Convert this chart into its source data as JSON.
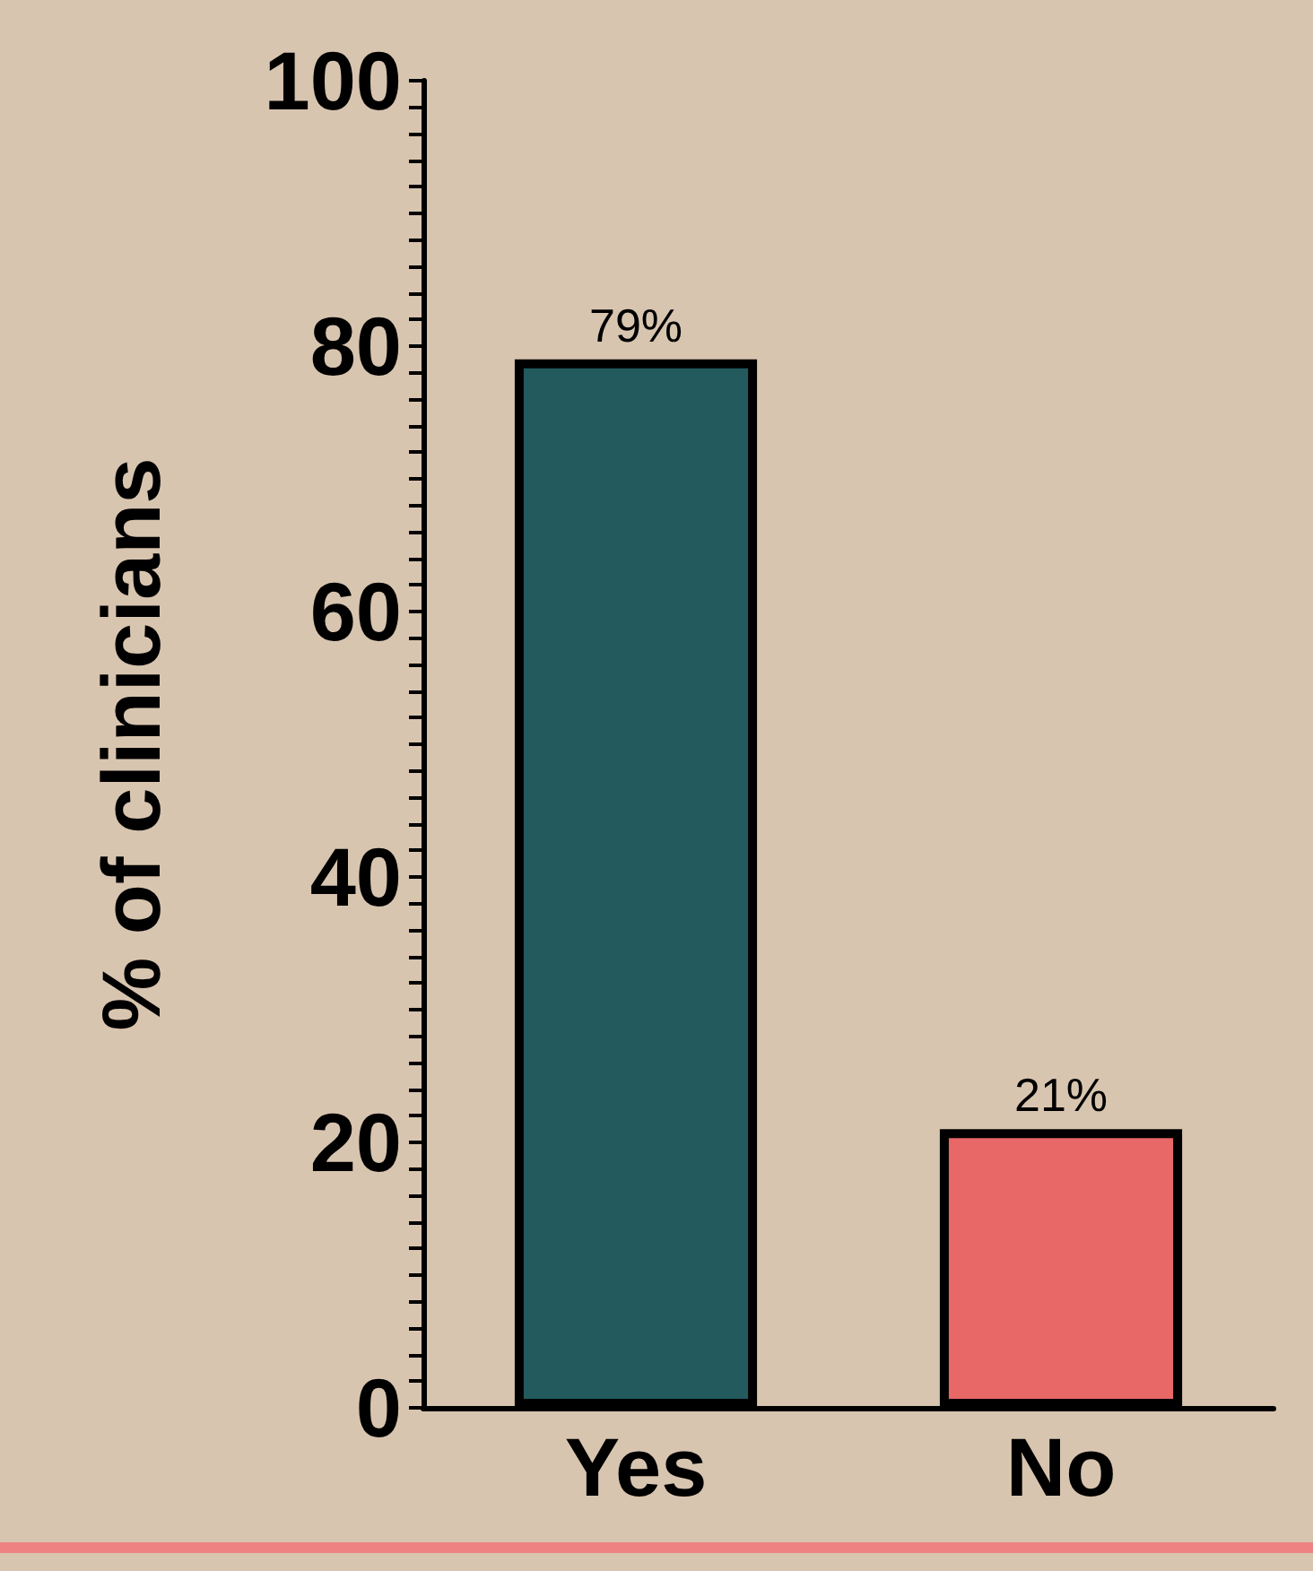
{
  "chart_data": {
    "type": "bar",
    "ylabel": "% of clinicians",
    "categories": [
      "Yes",
      "No"
    ],
    "values": [
      79,
      21
    ],
    "colors": [
      "#225a5e",
      "#e86767"
    ],
    "value_labels": [
      "79%",
      "21%"
    ],
    "ylim": [
      0,
      100
    ],
    "yticks": [
      0,
      {
        "value": 2,
        "label": null
      },
      {
        "value": 4,
        "label": null
      },
      {
        "value": 6,
        "label": null
      },
      {
        "value": 8,
        "label": null
      },
      {
        "value": 10,
        "label": null
      },
      {
        "value": 12,
        "label": null
      },
      {
        "value": 14,
        "label": null
      },
      {
        "value": 16,
        "label": null
      },
      {
        "value": 18,
        "label": null
      },
      20,
      {
        "value": 22,
        "label": null
      },
      {
        "value": 24,
        "label": null
      },
      {
        "value": 26,
        "label": null
      },
      {
        "value": 28,
        "label": null
      },
      {
        "value": 30,
        "label": null
      },
      {
        "value": 32,
        "label": null
      },
      {
        "value": 34,
        "label": null
      },
      {
        "value": 36,
        "label": null
      },
      {
        "value": 38,
        "label": null
      },
      40,
      {
        "value": 42,
        "label": null
      },
      {
        "value": 44,
        "label": null
      },
      {
        "value": 46,
        "label": null
      },
      {
        "value": 48,
        "label": null
      },
      {
        "value": 50,
        "label": null
      },
      {
        "value": 52,
        "label": null
      },
      {
        "value": 54,
        "label": null
      },
      {
        "value": 56,
        "label": null
      },
      {
        "value": 58,
        "label": null
      },
      60,
      {
        "value": 62,
        "label": null
      },
      {
        "value": 64,
        "label": null
      },
      {
        "value": 66,
        "label": null
      },
      {
        "value": 68,
        "label": null
      },
      {
        "value": 70,
        "label": null
      },
      {
        "value": 72,
        "label": null
      },
      {
        "value": 74,
        "label": null
      },
      {
        "value": 76,
        "label": null
      },
      {
        "value": 78,
        "label": null
      },
      80,
      {
        "value": 82,
        "label": null
      },
      {
        "value": 84,
        "label": null
      },
      {
        "value": 86,
        "label": null
      },
      {
        "value": 88,
        "label": null
      },
      {
        "value": 90,
        "label": null
      },
      {
        "value": 92,
        "label": null
      },
      {
        "value": 94,
        "label": null
      },
      {
        "value": 96,
        "label": null
      },
      {
        "value": 98,
        "label": null
      },
      100
    ],
    "grid": false
  }
}
